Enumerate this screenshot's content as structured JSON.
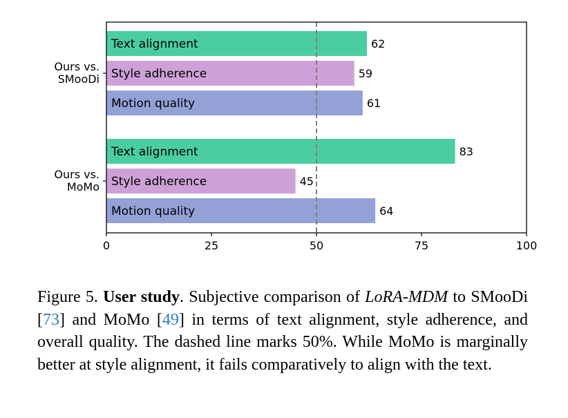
{
  "chart_data": {
    "type": "bar",
    "orientation": "horizontal",
    "groups": [
      {
        "label": "Ours vs.\nSMooDi",
        "bars": [
          {
            "label": "Text alignment",
            "value": 62,
            "color": "#4bcda2"
          },
          {
            "label": "Style adherence",
            "value": 59,
            "color": "#cda1d7"
          },
          {
            "label": "Motion quality",
            "value": 61,
            "color": "#94a1d6"
          }
        ]
      },
      {
        "label": "Ours vs.\nMoMo",
        "bars": [
          {
            "label": "Text alignment",
            "value": 83,
            "color": "#4bcda2"
          },
          {
            "label": "Style adherence",
            "value": 45,
            "color": "#cda1d7"
          },
          {
            "label": "Motion quality",
            "value": 64,
            "color": "#94a1d6"
          }
        ]
      }
    ],
    "xlim": [
      0,
      100
    ],
    "xticks": [
      0,
      25,
      50,
      75,
      100
    ],
    "reference_line": {
      "value": 50,
      "style": "dashed",
      "color": "#808080"
    },
    "grid": false,
    "legend": "none"
  },
  "caption": {
    "prefix": "Figure 5. ",
    "bold": "User study",
    "part1": ". Subjective comparison of ",
    "italic": "LoRA-MDM",
    "part2": " to SMooDi [",
    "ref1": "73",
    "part3": "] and MoMo [",
    "ref2": "49",
    "part4": "] in terms of text alignment, style adherence, and overall quality. The dashed line marks 50%. While MoMo is marginally better at style alignment, it fails comparatively to align with the text."
  }
}
